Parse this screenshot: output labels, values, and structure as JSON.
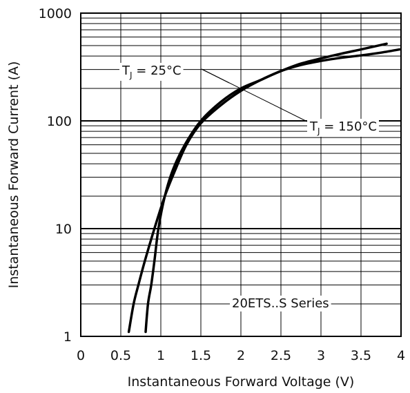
{
  "chart_data": {
    "type": "line",
    "xlabel": "Instantaneous Forward Voltage (V)",
    "ylabel": "Instantaneous Forward Current (A)",
    "xlim": [
      0,
      4
    ],
    "ylim": [
      1,
      1000
    ],
    "yscale": "log",
    "x_ticks": [
      "0",
      "0.5",
      "1",
      "1.5",
      "2",
      "2.5",
      "3",
      "3.5",
      "4"
    ],
    "y_ticks": [
      "1",
      "10",
      "100",
      "1000"
    ],
    "grid": true,
    "series": [
      {
        "name": "TJ = 25°C",
        "label_main": "T",
        "label_sub": "J",
        "label_rest": " = 25°C",
        "points": [
          [
            0.81,
            1.1
          ],
          [
            0.84,
            2
          ],
          [
            0.88,
            3
          ],
          [
            0.92,
            5
          ],
          [
            0.97,
            10
          ],
          [
            1.05,
            20
          ],
          [
            1.15,
            35
          ],
          [
            1.3,
            60
          ],
          [
            1.5,
            100
          ],
          [
            1.75,
            150
          ],
          [
            2.0,
            200
          ],
          [
            2.25,
            240
          ],
          [
            2.5,
            290
          ],
          [
            2.75,
            330
          ],
          [
            3.0,
            360
          ],
          [
            3.25,
            385
          ],
          [
            3.5,
            405
          ],
          [
            3.75,
            430
          ],
          [
            3.98,
            460
          ]
        ]
      },
      {
        "name": "TJ = 150°C",
        "label_main": "T",
        "label_sub": "J",
        "label_rest": " = 150°C",
        "points": [
          [
            0.6,
            1.1
          ],
          [
            0.66,
            2
          ],
          [
            0.72,
            3
          ],
          [
            0.8,
            5
          ],
          [
            0.92,
            10
          ],
          [
            1.05,
            20
          ],
          [
            1.18,
            35
          ],
          [
            1.32,
            60
          ],
          [
            1.5,
            95
          ],
          [
            1.75,
            140
          ],
          [
            2.0,
            190
          ],
          [
            2.25,
            240
          ],
          [
            2.5,
            290
          ],
          [
            2.75,
            340
          ],
          [
            3.0,
            380
          ],
          [
            3.25,
            420
          ],
          [
            3.5,
            460
          ],
          [
            3.82,
            520
          ]
        ]
      }
    ],
    "annotations": [
      "20ETS..S Series"
    ]
  }
}
